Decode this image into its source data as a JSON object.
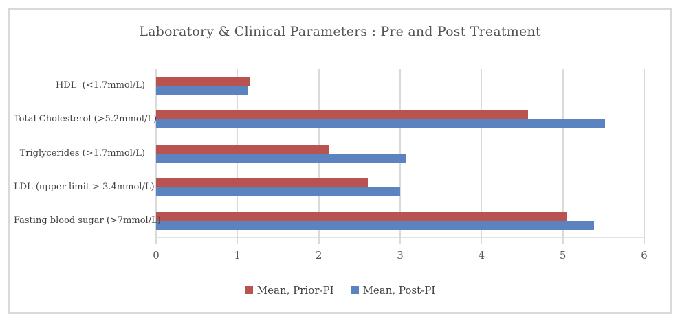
{
  "title": "Laboratory & Clinical Parameters : Pre and Post Treatment",
  "colors": {
    "prior_red": "#b9534f",
    "post_blue": "#5b83c0",
    "gridline": "#dadada",
    "tick_text": "#595959",
    "category_text": "#404040",
    "title_text": "#555555",
    "frame_border": "#d9d9d9"
  },
  "legend": {
    "position": "bottom-center",
    "items": [
      {
        "label": "Mean, Prior-PI",
        "color": "#b9534f"
      },
      {
        "label": "Mean, Post-PI",
        "color": "#5b83c0"
      }
    ]
  },
  "chart_data": {
    "type": "bar",
    "orientation": "horizontal",
    "title": "Laboratory & Clinical Parameters : Pre and Post Treatment",
    "categories": [
      "HDL  (<1.7mmol/L)",
      "Total Cholesterol (>5.2mmol/L)",
      "Triglycerides (>1.7mmol/L)",
      "LDL (upper limit > 3.4mmol/L)",
      "Fasting blood sugar (>7mmol/L)"
    ],
    "series": [
      {
        "name": "Mean, Prior-PI",
        "color": "#b9534f",
        "values": [
          1.15,
          4.57,
          2.12,
          2.6,
          5.05
        ]
      },
      {
        "name": "Mean, Post-PI",
        "color": "#5b83c0",
        "values": [
          1.12,
          5.52,
          3.08,
          3.0,
          5.38
        ]
      }
    ],
    "xlabel": "",
    "ylabel": "",
    "xlim": [
      0,
      6
    ],
    "xticks": [
      0,
      1,
      2,
      3,
      4,
      5,
      6
    ],
    "tick_labels": [
      "0",
      "1",
      "2",
      "3",
      "4",
      "5",
      "6"
    ],
    "grid": "vertical",
    "legend_position": "bottom"
  }
}
